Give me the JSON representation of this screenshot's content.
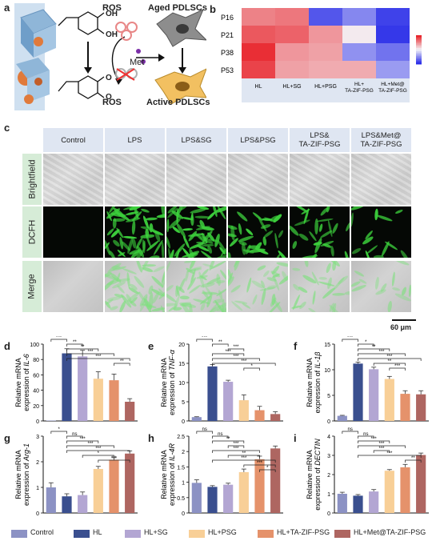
{
  "panel_labels": {
    "a": "a",
    "b": "b",
    "c": "c",
    "d": "d",
    "e": "e",
    "f": "f",
    "g": "g",
    "h": "h",
    "i": "i"
  },
  "schematic": {
    "ros_top": "ROS",
    "aged": "Aged PDLSCs",
    "met": "Met",
    "ros_bottom": "ROS",
    "active": "Active PDLSCs",
    "oh1": "OH",
    "oh2": "OH",
    "o1": "O",
    "o2": "O"
  },
  "heatmap": {
    "rows": [
      "P16",
      "P21",
      "P38",
      "P53"
    ],
    "cols": [
      "HL",
      "HL+SG",
      "HL+PSG",
      "HL+\nTA-ZIF-PSG",
      "HL+Met@\nTA-ZIF-PSG"
    ],
    "values": [
      [
        0.55,
        0.6,
        -0.8,
        -0.55,
        -0.9
      ],
      [
        0.75,
        0.7,
        0.45,
        0.05,
        -0.95
      ],
      [
        0.95,
        0.45,
        0.4,
        -0.5,
        -0.65
      ],
      [
        0.85,
        0.4,
        0.35,
        0.35,
        -0.45
      ]
    ],
    "colors": {
      "high": "#e8242b",
      "mid": "#f4f4f8",
      "low": "#2b2ee8"
    }
  },
  "micrographs": {
    "columns": [
      "Control",
      "LPS",
      "LPS&SG",
      "LPS&PSG",
      "LPS&\nTA-ZIF-PSG",
      "LPS&Met@\nTA-ZIF-PSG"
    ],
    "rows": [
      "Brightfield",
      "DCFH",
      "Merge"
    ],
    "dcfh_intensity": [
      0.0,
      0.95,
      1.0,
      0.55,
      0.45,
      0.25
    ],
    "scale_bar": "60 μm"
  },
  "legend": {
    "items": [
      {
        "name": "Control",
        "color": "#8c92c4"
      },
      {
        "name": "HL",
        "color": "#3a4f8f"
      },
      {
        "name": "HL+SG",
        "color": "#b3a6d3"
      },
      {
        "name": "HL+PSG",
        "color": "#f8cf97"
      },
      {
        "name": "HL+TA-ZIF-PSG",
        "color": "#e5926b"
      },
      {
        "name": "HL+Met@TA-ZIF-PSG",
        "color": "#ae6661"
      }
    ]
  },
  "chart_data": [
    {
      "panel": "d",
      "type": "bar",
      "ylabel_1": "Relative mRNA",
      "ylabel_2": "expression of ",
      "gene": "IL-6",
      "ylim": [
        0,
        100
      ],
      "yticks": [
        0,
        20,
        40,
        60,
        80,
        100
      ],
      "values": [
        0.5,
        88,
        84,
        55,
        53,
        25
      ],
      "errors": [
        0,
        6,
        8,
        9,
        8,
        4
      ],
      "sig": [
        {
          "a": 0,
          "b": 1,
          "t": "***"
        },
        {
          "a": 1,
          "b": 2,
          "t": "**"
        },
        {
          "a": 1,
          "b": 3,
          "t": "**"
        },
        {
          "a": 1,
          "b": 4,
          "t": "***"
        },
        {
          "a": 1,
          "b": 5,
          "t": "***"
        },
        {
          "a": 4,
          "b": 5,
          "t": "**"
        }
      ]
    },
    {
      "panel": "e",
      "type": "bar",
      "ylabel_1": "Relative mRNA",
      "ylabel_2": "expression of ",
      "gene": "TNF-α",
      "ylim": [
        0,
        20
      ],
      "yticks": [
        0,
        5,
        10,
        15,
        20
      ],
      "values": [
        1,
        14.2,
        10.2,
        5.4,
        2.8,
        1.8
      ],
      "errors": [
        0.1,
        0.5,
        0.4,
        1.4,
        1.0,
        0.6
      ],
      "sig": [
        {
          "a": 0,
          "b": 1,
          "t": "***"
        },
        {
          "a": 1,
          "b": 2,
          "t": "**"
        },
        {
          "a": 2,
          "b": 3,
          "t": "***"
        },
        {
          "a": 1,
          "b": 3,
          "t": "***"
        },
        {
          "a": 1,
          "b": 4,
          "t": "***"
        },
        {
          "a": 1,
          "b": 5,
          "t": "***"
        },
        {
          "a": 3,
          "b": 4,
          "t": "*"
        }
      ]
    },
    {
      "panel": "f",
      "type": "bar",
      "ylabel_1": "Relative mRNA",
      "ylabel_2": "expression of ",
      "gene": "IL-1β",
      "ylim": [
        0,
        15
      ],
      "yticks": [
        0,
        5,
        10,
        15
      ],
      "values": [
        1,
        11.2,
        10.1,
        8.2,
        5.3,
        5.2
      ],
      "errors": [
        0.1,
        0.3,
        0.4,
        0.5,
        0.6,
        0.7
      ],
      "sig": [
        {
          "a": 0,
          "b": 1,
          "t": "***"
        },
        {
          "a": 1,
          "b": 2,
          "t": "*"
        },
        {
          "a": 1,
          "b": 3,
          "t": "**"
        },
        {
          "a": 1,
          "b": 4,
          "t": "***"
        },
        {
          "a": 1,
          "b": 5,
          "t": "***"
        },
        {
          "a": 2,
          "b": 4,
          "t": "**"
        },
        {
          "a": 3,
          "b": 4,
          "t": "***"
        }
      ]
    },
    {
      "panel": "g",
      "type": "bar",
      "ylabel_1": "Relative mRNA",
      "ylabel_2": "expression of ",
      "gene": "Arg-1",
      "ylim": [
        0,
        3
      ],
      "yticks": [
        0,
        1,
        2,
        3
      ],
      "values": [
        1.0,
        0.65,
        0.7,
        1.72,
        2.08,
        2.32
      ],
      "errors": [
        0.18,
        0.1,
        0.12,
        0.1,
        0.08,
        0.1
      ],
      "sig": [
        {
          "a": 0,
          "b": 1,
          "t": "*"
        },
        {
          "a": 1,
          "b": 2,
          "t": "ns"
        },
        {
          "a": 1,
          "b": 3,
          "t": "***"
        },
        {
          "a": 1,
          "b": 4,
          "t": "***"
        },
        {
          "a": 1,
          "b": 5,
          "t": "***"
        },
        {
          "a": 2,
          "b": 4,
          "t": "*"
        },
        {
          "a": 3,
          "b": 5,
          "t": "***"
        }
      ]
    },
    {
      "panel": "h",
      "type": "bar",
      "ylabel_1": "Relative mRNA",
      "ylabel_2": "expression of ",
      "gene": "IL-4R",
      "ylim": [
        0,
        2.5
      ],
      "yticks": [
        0,
        0.5,
        1.0,
        1.5,
        2.0,
        2.5
      ],
      "values": [
        0.98,
        0.85,
        0.92,
        1.33,
        1.75,
        2.1
      ],
      "errors": [
        0.1,
        0.04,
        0.05,
        0.1,
        0.1,
        0.08
      ],
      "sig": [
        {
          "a": 0,
          "b": 1,
          "t": "ns"
        },
        {
          "a": 1,
          "b": 2,
          "t": "ns"
        },
        {
          "a": 1,
          "b": 3,
          "t": "**"
        },
        {
          "a": 2,
          "b": 3,
          "t": "***"
        },
        {
          "a": 1,
          "b": 4,
          "t": "***"
        },
        {
          "a": 2,
          "b": 4,
          "t": "**"
        },
        {
          "a": 1,
          "b": 5,
          "t": "***"
        },
        {
          "a": 3,
          "b": 5,
          "t": "***"
        },
        {
          "a": 4,
          "b": 5,
          "t": "*"
        }
      ]
    },
    {
      "panel": "i",
      "type": "bar",
      "ylabel_1": "Relative mRNA",
      "ylabel_2": "expression of ",
      "gene": "DECTIN",
      "ylim": [
        0,
        4
      ],
      "yticks": [
        0,
        1,
        2,
        3,
        4
      ],
      "values": [
        1.0,
        0.9,
        1.12,
        2.2,
        2.38,
        3.02
      ],
      "errors": [
        0.08,
        0.06,
        0.1,
        0.06,
        0.15,
        0.1
      ],
      "sig": [
        {
          "a": 0,
          "b": 1,
          "t": "ns"
        },
        {
          "a": 1,
          "b": 2,
          "t": "ns"
        },
        {
          "a": 1,
          "b": 3,
          "t": "***"
        },
        {
          "a": 1,
          "b": 4,
          "t": "***"
        },
        {
          "a": 2,
          "b": 3,
          "t": "***"
        },
        {
          "a": 1,
          "b": 5,
          "t": "***"
        },
        {
          "a": 4,
          "b": 5,
          "t": "**"
        }
      ]
    }
  ]
}
